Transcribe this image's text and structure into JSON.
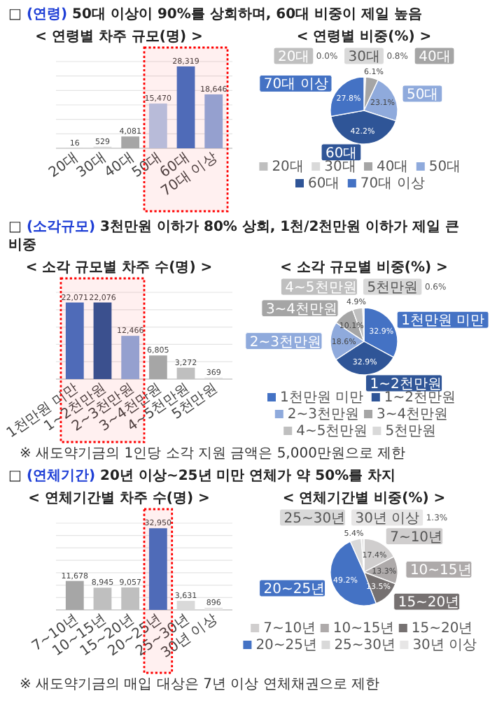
{
  "chart_data": [
    {
      "type": "bar",
      "title": "□ (연령) 50대 이상이 90%를 상회하며, 60대 비중이 제일 높음",
      "subtitle": "< 연령별 차주 규모(명) >",
      "categories": [
        "20대",
        "30대",
        "40대",
        "50대",
        "60대",
        "70대 이상"
      ],
      "values": [
        16,
        529,
        4081,
        15470,
        28319,
        18646
      ],
      "value_labels": [
        "16",
        "529",
        "4,081",
        "15,470",
        "28,319",
        "18,646"
      ],
      "colors": [
        "#bfbfbf",
        "#d9d9d9",
        "#a6a6a6",
        "#b4c7e7",
        "#4472c4",
        "#8faadc"
      ],
      "ylim": [
        0,
        30000
      ],
      "yticks": [
        {
          "value": 0,
          "label": null
        },
        {
          "value": 5000,
          "label": null
        },
        {
          "value": 10000,
          "label": null
        },
        {
          "value": 15000,
          "label": null
        },
        {
          "value": 20000,
          "label": null
        },
        {
          "value": 25000,
          "label": null
        },
        {
          "value": 30000,
          "label": null
        }
      ],
      "grid": "y",
      "tick_labels": "x",
      "bands": [
        {
          "axis": "x",
          "from": "50대",
          "to": "70대 이상",
          "color": "#ff0000"
        }
      ]
    },
    {
      "type": "pie",
      "title": "< 연령별 비중(%) >",
      "categories": [
        "20대",
        "30대",
        "40대",
        "50대",
        "60대",
        "70대 이상"
      ],
      "values": [
        0,
        0.8,
        6.1,
        23.1,
        42.2,
        27.8
      ],
      "value_labels": [
        "0.0%",
        "0.8%",
        "6.1%",
        "23.1%",
        "42.2%",
        "27.8%"
      ],
      "colors": [
        "#bfbfbf",
        "#d9d9d9",
        "#a5a5a5",
        "#8faadc",
        "#2f5597",
        "#4472c4"
      ],
      "legend": "bottom"
    },
    {
      "type": "bar",
      "title": "□ (소각규모) 3천만원 이하가 80% 상회, 1천/2천만원 이하가 제일 큰 비중",
      "subtitle": "< 소각 규모별 차주 수(명) >",
      "categories": [
        "1천만원 미만",
        "1~2천만원",
        "2~3천만원",
        "3~4천만원",
        "4~5천만원",
        "5천만원"
      ],
      "values": [
        22071,
        22076,
        12466,
        6805,
        3272,
        369
      ],
      "value_labels": [
        "22,071",
        "22,076",
        "12,466",
        "6,805",
        "3,272",
        "369"
      ],
      "colors": [
        "#4472c4",
        "#2f5597",
        "#8faadc",
        "#a6a6a6",
        "#bfbfbf",
        "#d9d9d9"
      ],
      "ylim": [
        0,
        25000
      ],
      "yticks": [
        {
          "value": 0,
          "label": null
        },
        {
          "value": 5000,
          "label": null
        },
        {
          "value": 10000,
          "label": null
        },
        {
          "value": 15000,
          "label": null
        },
        {
          "value": 20000,
          "label": null
        },
        {
          "value": 25000,
          "label": null
        }
      ],
      "grid": "y",
      "tick_labels": "x",
      "bands": [
        {
          "axis": "x",
          "from": "1천만원 미만",
          "to": "2~3천만원",
          "color": "#ff0000"
        }
      ],
      "annotations": [
        "※ 새도약기금의 1인당 소각 지원 금액은 5,000만원으로 제한"
      ]
    },
    {
      "type": "pie",
      "title": "< 소각 규모별 비중(%) >",
      "categories": [
        "1천만원 미만",
        "1~2천만원",
        "2~3천만원",
        "3~4천만원",
        "4~5천만원",
        "5천만원"
      ],
      "values": [
        32.9,
        32.9,
        18.6,
        10.1,
        4.9,
        0.6
      ],
      "value_labels": [
        "32.9%",
        "32.9%",
        "18.6%",
        "10.1%",
        "4.9%",
        "0.6%"
      ],
      "colors": [
        "#4472c4",
        "#2f5597",
        "#8faadc",
        "#a5a5a5",
        "#bfbfbf",
        "#d9d9d9"
      ],
      "legend": "bottom"
    },
    {
      "type": "bar",
      "title": "□ (연체기간) 20년 이상~25년 미만 연체가 약 50%를 차지",
      "subtitle": "< 연체기간별 차주 수(명) >",
      "categories": [
        "7~10년",
        "10~15년",
        "15~20년",
        "20~25년",
        "25~30년",
        "30년 이상"
      ],
      "values": [
        11678,
        8945,
        9057,
        32950,
        3631,
        896
      ],
      "value_labels": [
        "11,678",
        "8,945",
        "9,057",
        "32,950",
        "3,631",
        "896"
      ],
      "colors": [
        "#a6a6a6",
        "#bfbfbf",
        "#bfbfbf",
        "#4472c4",
        "#d9d9d9",
        "#e7e6e6"
      ],
      "ylim": [
        0,
        35000
      ],
      "yticks": [
        {
          "value": 0,
          "label": null
        },
        {
          "value": 5000,
          "label": null
        },
        {
          "value": 10000,
          "label": null
        },
        {
          "value": 15000,
          "label": null
        },
        {
          "value": 20000,
          "label": null
        },
        {
          "value": 25000,
          "label": null
        },
        {
          "value": 30000,
          "label": null
        },
        {
          "value": 35000,
          "label": null
        }
      ],
      "grid": "y",
      "tick_labels": "x",
      "bands": [
        {
          "axis": "x",
          "from": "20~25년",
          "to": "20~25년",
          "color": "#ff0000"
        }
      ],
      "annotations": [
        "※ 새도약기금의 매입 대상은 7년 이상 연체채권으로 제한"
      ]
    },
    {
      "type": "pie",
      "title": "< 연체기간별 비중(%) >",
      "categories": [
        "7~10년",
        "10~15년",
        "15~20년",
        "20~25년",
        "25~30년",
        "30년 이상"
      ],
      "values": [
        17.4,
        13.3,
        13.5,
        49.2,
        5.4,
        1.3
      ],
      "value_labels": [
        "17.4%",
        "13.3%",
        "13.5%",
        "49.2%",
        "5.4%",
        "1.3%"
      ],
      "colors": [
        "#d0cece",
        "#aeaaaa",
        "#767171",
        "#4472c4",
        "#d9d9d9",
        "#e7e6e6"
      ],
      "legend": "bottom"
    }
  ]
}
